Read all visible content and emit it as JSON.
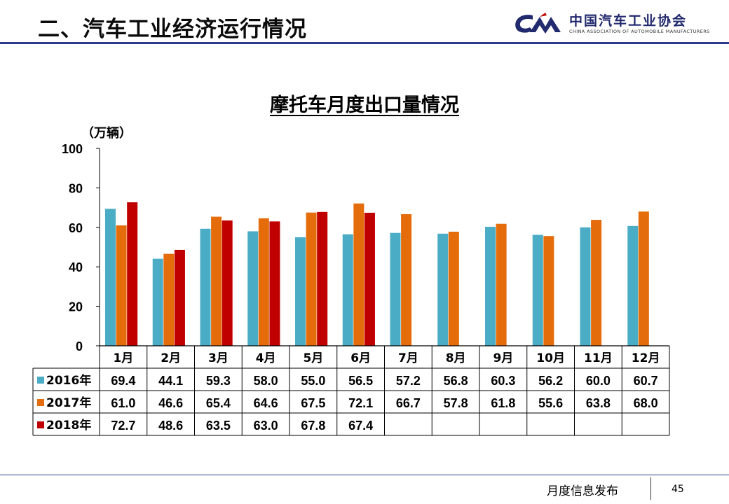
{
  "header": {
    "title": "二、汽车工业经济运行情况",
    "logo_cn": "中国汽车工业协会",
    "logo_en": "CHINA ASSOCIATION OF AUTOMOBILE MANUFACTURERS"
  },
  "footer": {
    "label": "月度信息发布",
    "page": "45"
  },
  "colors": {
    "accent": "#2e3a8c",
    "s2016": "#4bacc6",
    "s2017": "#e46c0a",
    "s2018": "#c00000"
  },
  "chart_data": {
    "type": "bar",
    "title": "摩托车月度出口量情况",
    "ylabel": "（万辆）",
    "xlabel": "",
    "ylim": [
      0,
      100
    ],
    "yticks": [
      0,
      20,
      40,
      60,
      80,
      100
    ],
    "categories": [
      "1月",
      "2月",
      "3月",
      "4月",
      "5月",
      "6月",
      "7月",
      "8月",
      "9月",
      "10月",
      "11月",
      "12月"
    ],
    "series": [
      {
        "name": "2016年",
        "color": "#4bacc6",
        "values": [
          69.4,
          44.1,
          59.3,
          58.0,
          55.0,
          56.5,
          57.2,
          56.8,
          60.3,
          56.2,
          60.0,
          60.7
        ],
        "labels": [
          "69.4",
          "44.1",
          "59.3",
          "58.0",
          "55.0",
          "56.5",
          "57.2",
          "56.8",
          "60.3",
          "56.2",
          "60.0",
          "60.7"
        ]
      },
      {
        "name": "2017年",
        "color": "#e46c0a",
        "values": [
          61.0,
          46.6,
          65.4,
          64.6,
          67.5,
          72.1,
          66.7,
          57.8,
          61.8,
          55.6,
          63.8,
          68.0
        ],
        "labels": [
          "61.0",
          "46.6",
          "65.4",
          "64.6",
          "67.5",
          "72.1",
          "66.7",
          "57.8",
          "61.8",
          "55.6",
          "63.8",
          "68.0"
        ]
      },
      {
        "name": "2018年",
        "color": "#c00000",
        "values": [
          72.7,
          48.6,
          63.5,
          63.0,
          67.8,
          67.4,
          null,
          null,
          null,
          null,
          null,
          null
        ],
        "labels": [
          "72.7",
          "48.6",
          "63.5",
          "63.0",
          "67.8",
          "67.4",
          "",
          "",
          "",
          "",
          "",
          ""
        ]
      }
    ],
    "data_table": true
  }
}
